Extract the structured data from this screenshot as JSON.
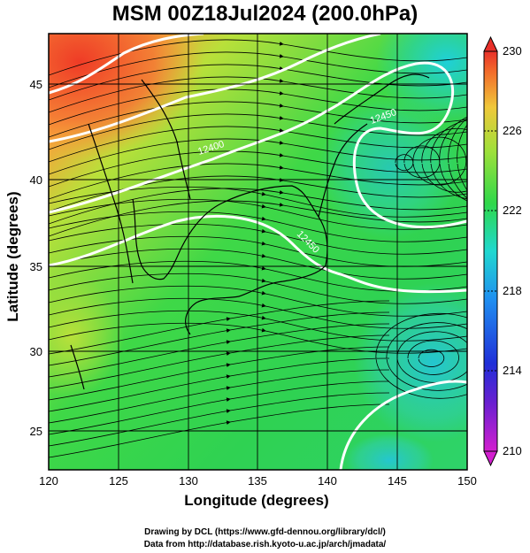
{
  "title": "MSM 00Z18Jul2024 (200.0hPa)",
  "chart_data": {
    "type": "heatmap",
    "title": "MSM 00Z18Jul2024 (200.0hPa)",
    "xlabel": "Longitude (degrees)",
    "ylabel": "Latitude  (degrees)",
    "xlim": [
      120,
      150
    ],
    "ylim": [
      22.4,
      47.6
    ],
    "x_ticks": [
      "120",
      "125",
      "130",
      "135",
      "140",
      "145",
      "150"
    ],
    "y_ticks": [
      "25",
      "30",
      "35",
      "40",
      "45"
    ],
    "grid": true,
    "colorbar": {
      "range": [
        210,
        230
      ],
      "tick_labels": [
        "230",
        "226",
        "222",
        "218",
        "214",
        "210"
      ]
    },
    "contours": [
      {
        "label": "12450"
      },
      {
        "label": "12400"
      },
      {
        "label": "12450"
      }
    ]
  },
  "footer": {
    "line1": "Drawing by DCL (https://www.gfd-dennou.org/library/dcl/)",
    "line2": "Data from http://database.rish.kyoto-u.ac.jp/arch/jmadata/"
  }
}
